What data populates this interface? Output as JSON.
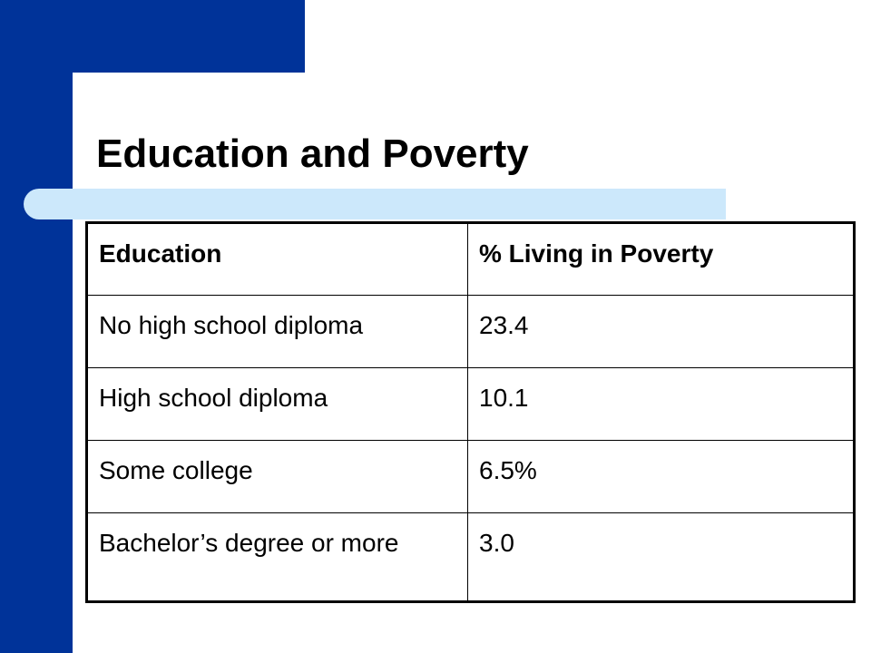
{
  "slide": {
    "title": "Education and Poverty",
    "colors": {
      "sidebar": "#003399",
      "accent_stripe": "#cce8fb",
      "background": "#ffffff",
      "text": "#000000"
    }
  },
  "table": {
    "headers": [
      "Education",
      "% Living in Poverty"
    ],
    "rows": [
      [
        "No high school diploma",
        "23.4"
      ],
      [
        "High school diploma",
        "10.1"
      ],
      [
        "Some college",
        "6.5%"
      ],
      [
        "Bachelor’s degree or more",
        "3.0"
      ]
    ]
  }
}
